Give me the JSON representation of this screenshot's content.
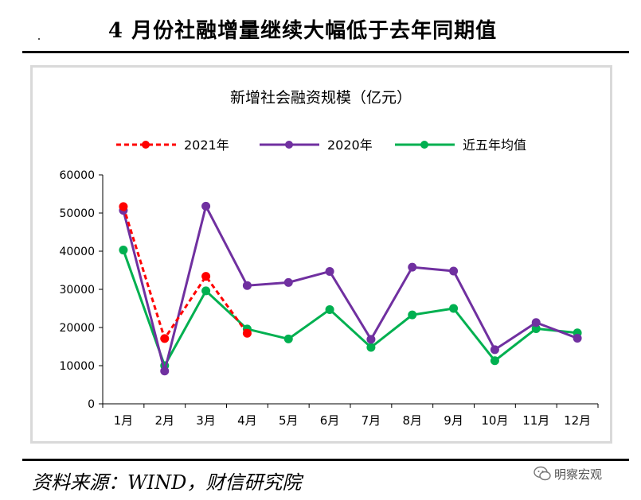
{
  "page_title": "4 月份社融增量继续大幅低于去年同期值",
  "source_text": "资料来源：WIND，财信研究院",
  "watermark": {
    "text": "明察宏观",
    "icon": "wechat-icon"
  },
  "chart_data": {
    "type": "line",
    "title": "新增社会融资规模（亿元）",
    "categories": [
      "1月",
      "2月",
      "3月",
      "4月",
      "5月",
      "6月",
      "7月",
      "8月",
      "9月",
      "10月",
      "11月",
      "12月"
    ],
    "ylim": [
      0,
      60000
    ],
    "yticks": [
      0,
      10000,
      20000,
      30000,
      40000,
      50000,
      60000
    ],
    "grid": false,
    "legend_position": "top",
    "series": [
      {
        "name": "2021年",
        "color": "#ff0000",
        "dashed": true,
        "values": [
          51700,
          17100,
          33400,
          18500,
          null,
          null,
          null,
          null,
          null,
          null,
          null,
          null
        ]
      },
      {
        "name": "2020年",
        "color": "#7030a0",
        "dashed": false,
        "values": [
          50700,
          8600,
          51800,
          31000,
          31800,
          34700,
          16900,
          35800,
          34800,
          14200,
          21300,
          17200
        ]
      },
      {
        "name": "近五年均值",
        "color": "#00b050",
        "dashed": false,
        "values": [
          40300,
          10000,
          29600,
          19600,
          17000,
          24700,
          14800,
          23300,
          25000,
          11300,
          19700,
          18600
        ]
      }
    ]
  }
}
